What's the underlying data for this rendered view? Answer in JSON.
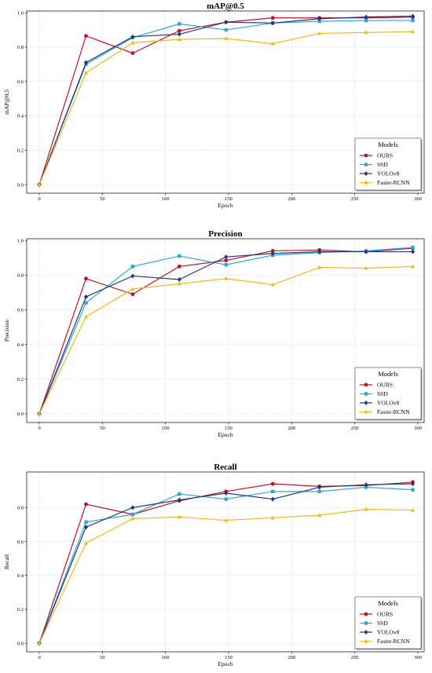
{
  "colors": {
    "OURS": "#c0141e",
    "SSD": "#2aa8dc",
    "YOLOv8": "#243680",
    "Faster-RCNN": "#f2b81c"
  },
  "markers": {
    "OURS": "circle",
    "SSD": "square",
    "YOLOv8": "diamond",
    "Faster-RCNN": "triangle"
  },
  "chart_data": [
    {
      "type": "line",
      "title": "mAP@0.5",
      "xlabel": "Epoch",
      "ylabel": "mAP@0.5",
      "xlim": [
        -10,
        305
      ],
      "ylim": [
        -0.05,
        1.01
      ],
      "xticks": [
        0,
        50,
        100,
        150,
        200,
        250,
        300
      ],
      "yticks": [
        0.0,
        0.2,
        0.4,
        0.6,
        0.8,
        1.0
      ],
      "ytick_labels": [
        "0.0",
        "0.2",
        "0.4",
        "0.6",
        "0.8",
        "1.0"
      ],
      "grid": true,
      "legend": {
        "title": "Models",
        "position": "lower-right"
      },
      "x": [
        0,
        37,
        74,
        111,
        148,
        185,
        222,
        259,
        296
      ],
      "series": [
        {
          "name": "OURS",
          "values": [
            0.0,
            0.865,
            0.765,
            0.895,
            0.945,
            0.97,
            0.97,
            0.97,
            0.975
          ]
        },
        {
          "name": "SSD",
          "values": [
            0.0,
            0.7,
            0.855,
            0.935,
            0.9,
            0.94,
            0.95,
            0.955,
            0.955
          ]
        },
        {
          "name": "YOLOv8",
          "values": [
            0.0,
            0.71,
            0.86,
            0.875,
            0.945,
            0.94,
            0.965,
            0.975,
            0.98
          ]
        },
        {
          "name": "Faster-RCNN",
          "values": [
            0.0,
            0.65,
            0.825,
            0.845,
            0.85,
            0.82,
            0.88,
            0.885,
            0.89
          ]
        }
      ]
    },
    {
      "type": "line",
      "title": "Precision",
      "xlabel": "Epoch",
      "ylabel": "Precision",
      "xlim": [
        -10,
        305
      ],
      "ylim": [
        -0.05,
        1.01
      ],
      "xticks": [
        0,
        50,
        100,
        150,
        200,
        250,
        300
      ],
      "yticks": [
        0.0,
        0.2,
        0.4,
        0.6,
        0.8,
        1.0
      ],
      "ytick_labels": [
        "0.0",
        "0.2",
        "0.4",
        "0.6",
        "0.8",
        "1.0"
      ],
      "grid": true,
      "legend": {
        "title": "Models",
        "position": "lower-right"
      },
      "x": [
        0,
        37,
        74,
        111,
        148,
        185,
        222,
        259,
        296
      ],
      "series": [
        {
          "name": "OURS",
          "values": [
            0.0,
            0.78,
            0.69,
            0.85,
            0.885,
            0.94,
            0.945,
            0.935,
            0.955
          ]
        },
        {
          "name": "SSD",
          "values": [
            0.0,
            0.64,
            0.85,
            0.91,
            0.86,
            0.915,
            0.93,
            0.94,
            0.96
          ]
        },
        {
          "name": "YOLOv8",
          "values": [
            0.0,
            0.675,
            0.795,
            0.775,
            0.905,
            0.925,
            0.935,
            0.935,
            0.935
          ]
        },
        {
          "name": "Faster-RCNN",
          "values": [
            0.0,
            0.56,
            0.72,
            0.75,
            0.78,
            0.745,
            0.845,
            0.84,
            0.85
          ]
        }
      ]
    },
    {
      "type": "line",
      "title": "Recall",
      "xlabel": "Epoch",
      "ylabel": "Recall",
      "xlim": [
        -10,
        305
      ],
      "ylim": [
        -0.05,
        1.01
      ],
      "xticks": [
        0,
        50,
        100,
        150,
        200,
        250,
        300
      ],
      "yticks": [
        0.0,
        0.2,
        0.4,
        0.6,
        0.8
      ],
      "ytick_labels": [
        "0.0",
        "0.2",
        "0.4",
        "0.6",
        "0.8"
      ],
      "grid": true,
      "legend": {
        "title": "Models",
        "position": "lower-right"
      },
      "x": [
        0,
        37,
        74,
        111,
        148,
        185,
        222,
        259,
        296
      ],
      "series": [
        {
          "name": "OURS",
          "values": [
            0.0,
            0.82,
            0.76,
            0.84,
            0.895,
            0.94,
            0.925,
            0.93,
            0.95
          ]
        },
        {
          "name": "SSD",
          "values": [
            0.0,
            0.715,
            0.76,
            0.88,
            0.85,
            0.895,
            0.895,
            0.92,
            0.905
          ]
        },
        {
          "name": "YOLOv8",
          "values": [
            0.0,
            0.685,
            0.8,
            0.845,
            0.885,
            0.85,
            0.92,
            0.935,
            0.94
          ]
        },
        {
          "name": "Faster-RCNN",
          "values": [
            0.0,
            0.59,
            0.735,
            0.745,
            0.725,
            0.74,
            0.755,
            0.79,
            0.785
          ]
        }
      ]
    }
  ]
}
